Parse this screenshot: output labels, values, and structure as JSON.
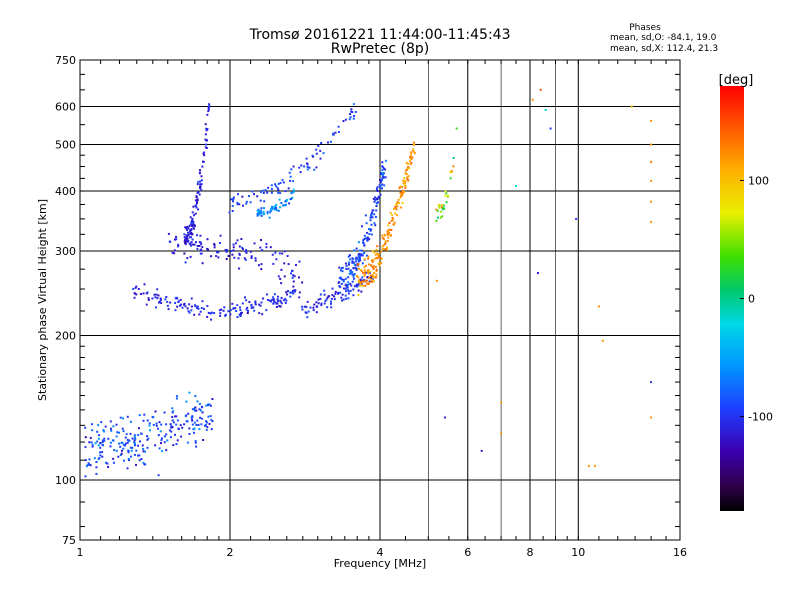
{
  "header": {
    "title_line1": "Tromsø 20161221 11:44:00-11:45:43",
    "title_line2": "RwPretec (8p)",
    "stats_title": "Phases",
    "stats_o": "mean, sd,O: -84.1, 19.0",
    "stats_x": "mean, sd,X: 112.4, 21.3"
  },
  "colorbar": {
    "unit_label": "[deg]",
    "tick_labels": [
      "100",
      "0",
      "-100"
    ],
    "ticks": [
      100,
      0,
      -100
    ],
    "range": [
      -180,
      180
    ]
  },
  "chart_data": {
    "type": "scatter",
    "title": "Tromsø 20161221 11:44:00-11:45:43",
    "subtitle": "RwPretec (8p)",
    "xlabel": "Frequency [MHz]",
    "ylabel": "Stationary phase Virtual Height [km]",
    "xscale": "log",
    "yscale": "log",
    "xlim": [
      1,
      16
    ],
    "ylim": [
      75,
      750
    ],
    "x_ticks": [
      1,
      2,
      4,
      6,
      8,
      10,
      16
    ],
    "x_tick_labels": [
      "1",
      "2",
      "4",
      "6",
      "8",
      "10",
      "16"
    ],
    "y_ticks": [
      75,
      100,
      200,
      300,
      400,
      500,
      600,
      750
    ],
    "y_tick_labels": [
      "75",
      "100",
      "200",
      "300",
      "400",
      "500",
      "600",
      "750"
    ],
    "grid": true,
    "color_by": "phase [deg]",
    "traces": [
      {
        "f_start": 1.28,
        "f_end": 3.9,
        "h_start": 250,
        "h_end": 265,
        "mid_h": 225,
        "spread": 12,
        "n": 260,
        "phase": -105,
        "phase_sd": 15
      },
      {
        "f_start": 3.3,
        "f_end": 4.1,
        "h_start": 260,
        "h_end": 450,
        "spread": 30,
        "n": 180,
        "phase": -90,
        "phase_sd": 20
      },
      {
        "f_start": 3.6,
        "f_end": 4.7,
        "h_start": 265,
        "h_end": 500,
        "spread": 25,
        "n": 200,
        "phase": 120,
        "phase_sd": 20
      },
      {
        "f_start": 1.5,
        "f_end": 2.8,
        "h_start": 310,
        "h_end": 270,
        "spread": 30,
        "n": 120,
        "phase": -110,
        "phase_sd": 15
      },
      {
        "f_start": 1.62,
        "f_end": 1.82,
        "h_start": 320,
        "h_end": 600,
        "spread": 20,
        "n": 110,
        "phase": -110,
        "phase_sd": 15
      },
      {
        "f_start": 2.0,
        "f_end": 3.6,
        "h_start": 380,
        "h_end": 600,
        "spread": 25,
        "n": 90,
        "phase": -95,
        "phase_sd": 20
      },
      {
        "f_start": 2.25,
        "f_end": 2.7,
        "h_start": 360,
        "h_end": 400,
        "spread": 12,
        "n": 60,
        "phase": -60,
        "phase_sd": 30
      },
      {
        "f_start": 5.2,
        "f_end": 5.6,
        "h_start": 360,
        "h_end": 460,
        "spread": 20,
        "n": 30,
        "phase": 60,
        "phase_sd": 60
      },
      {
        "f_start": 1.02,
        "f_end": 1.85,
        "h_start": 118,
        "h_end": 140,
        "spread": 20,
        "n": 260,
        "phase": -90,
        "phase_sd": 25
      }
    ],
    "isolated_points": [
      {
        "x": 8.1,
        "y": 620,
        "phase": 120
      },
      {
        "x": 8.4,
        "y": 650,
        "phase": 150
      },
      {
        "x": 8.6,
        "y": 590,
        "phase": -20
      },
      {
        "x": 8.8,
        "y": 540,
        "phase": -100
      },
      {
        "x": 7.5,
        "y": 410,
        "phase": -20
      },
      {
        "x": 9.9,
        "y": 350,
        "phase": -100
      },
      {
        "x": 8.3,
        "y": 270,
        "phase": -110
      },
      {
        "x": 7.0,
        "y": 145,
        "phase": 120
      },
      {
        "x": 6.4,
        "y": 115,
        "phase": -110
      },
      {
        "x": 7.0,
        "y": 125,
        "phase": 120
      },
      {
        "x": 10.5,
        "y": 107,
        "phase": 120
      },
      {
        "x": 10.8,
        "y": 107,
        "phase": 120
      },
      {
        "x": 11.0,
        "y": 230,
        "phase": 120
      },
      {
        "x": 11.2,
        "y": 195,
        "phase": 120
      },
      {
        "x": 12.8,
        "y": 600,
        "phase": 100
      },
      {
        "x": 14.0,
        "y": 560,
        "phase": 120
      },
      {
        "x": 14.0,
        "y": 500,
        "phase": 120
      },
      {
        "x": 14.0,
        "y": 460,
        "phase": 130
      },
      {
        "x": 14.0,
        "y": 420,
        "phase": 120
      },
      {
        "x": 14.0,
        "y": 380,
        "phase": 120
      },
      {
        "x": 14.0,
        "y": 345,
        "phase": 120
      },
      {
        "x": 14.0,
        "y": 160,
        "phase": -100
      },
      {
        "x": 14.0,
        "y": 135,
        "phase": 120
      },
      {
        "x": 5.4,
        "y": 135,
        "phase": -110
      },
      {
        "x": 5.7,
        "y": 540,
        "phase": 30
      },
      {
        "x": 5.2,
        "y": 260,
        "phase": 120
      }
    ]
  }
}
